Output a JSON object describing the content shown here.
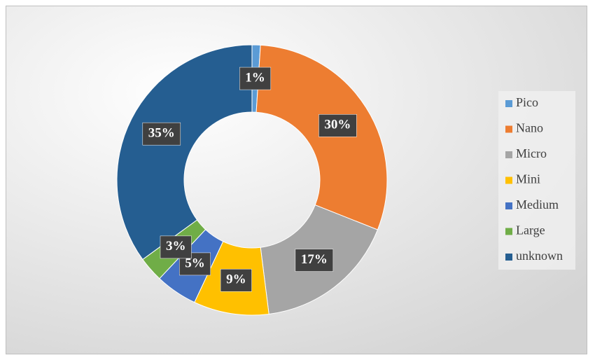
{
  "chart_data": {
    "type": "donut",
    "categories": [
      "Pico",
      "Nano",
      "Micro",
      "Mini",
      "Medium",
      "Large",
      "unknown"
    ],
    "values": [
      1,
      30,
      17,
      9,
      5,
      3,
      35
    ],
    "value_labels": [
      "1%",
      "30%",
      "17%",
      "9%",
      "5%",
      "3%",
      "35%"
    ],
    "colors": [
      "#5b9bd5",
      "#ed7d31",
      "#a5a5a5",
      "#ffc000",
      "#4472c4",
      "#70ad47",
      "#255e91"
    ],
    "legend": "right"
  }
}
